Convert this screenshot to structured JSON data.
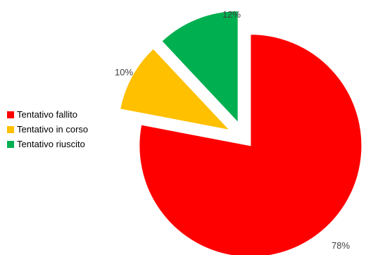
{
  "chart_data": {
    "type": "pie",
    "exploded": true,
    "start_angle_deg": 0,
    "direction": "clockwise",
    "legend_position": "left",
    "slices": [
      {
        "name": "Tentativo fallito",
        "value": 78,
        "label": "78%",
        "color": "#ff0000"
      },
      {
        "name": "Tentativo in corso",
        "value": 10,
        "label": "10%",
        "color": "#ffc000"
      },
      {
        "name": "Tentativo riuscito",
        "value": 12,
        "label": "12%",
        "color": "#00b050"
      }
    ]
  }
}
